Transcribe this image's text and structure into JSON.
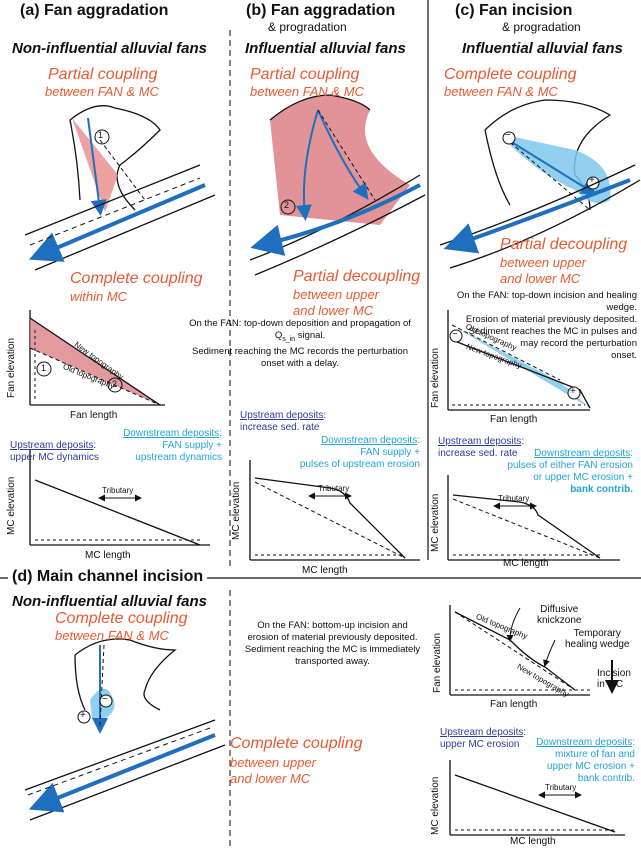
{
  "panels": {
    "a": {
      "title": "(a) Fan aggradation",
      "fan_type": "Non-influential alluvial fans",
      "coupling_top_1": "Partial coupling",
      "coupling_top_2": "between FAN & MC",
      "coupling_bottom_1": "Complete coupling",
      "coupling_bottom_2": "within MC",
      "note_1": "On the FAN: top-down deposition and propagation of Q",
      "note_sub": "s_in",
      "note_2": " signal.",
      "note_3": "Sediment reaching the MC records the perturbation",
      "note_4": "onset with a delay.",
      "profile": {
        "new_topo": "New topography",
        "old_topo": "Old topography",
        "ylabel": "Fan elevation",
        "xlabel": "Fan length",
        "marker1": "1",
        "marker2": "2"
      },
      "upstream_label": "Upstream deposits",
      "upstream_text": "upper MC dynamics",
      "downstream_label": "Downstream deposits",
      "downstream_text_1": "FAN supply +",
      "downstream_text_2": "upstream dynamics",
      "mc": {
        "ylabel": "MC elevation",
        "xlabel": "MC length",
        "tributary": "Tributary"
      }
    },
    "b": {
      "title": "(b) Fan aggradation",
      "subtitle": "& progradation",
      "fan_type": "Influential alluvial fans",
      "coupling_top_1": "Partial coupling",
      "coupling_top_2": "between FAN & MC",
      "coupling_bottom_1": "Partial decoupling",
      "coupling_bottom_2": "between upper",
      "coupling_bottom_3": "and lower MC",
      "upstream_label": "Upstream deposits",
      "upstream_text": "increase sed. rate",
      "downstream_label": "Downstream deposits",
      "downstream_text_1": "FAN supply +",
      "downstream_text_2": "pulses of upstream erosion",
      "mc": {
        "ylabel": "MC elevation",
        "xlabel": "MC length",
        "tributary": "Tributary"
      },
      "marker": "2"
    },
    "c": {
      "title": "(c) Fan incision",
      "subtitle": "& progradation",
      "fan_type": "Influential alluvial fans",
      "coupling_top_1": "Complete coupling",
      "coupling_top_2": "between FAN & MC",
      "coupling_bottom_1": "Partial decoupling",
      "coupling_bottom_2": "between upper",
      "coupling_bottom_3": "and lower MC",
      "note_1": "On the FAN: top-down incision and healing wedge.",
      "note_2": "Erosion of material previously deposited.",
      "note_3": "Sediment reaches the MC in pulses and",
      "note_4": "may record the perturbation",
      "note_5": "onset.",
      "profile": {
        "old_topo": "Old topography",
        "new_topo": "New topography",
        "ylabel": "Fan elevation",
        "xlabel": "Fan length",
        "minus": "−",
        "plus": "+"
      },
      "upstream_label": "Upstream deposits",
      "upstream_text": "increase sed. rate",
      "downstream_label": "Downstream deposits",
      "downstream_text_1": "pulses of either FAN erosion",
      "downstream_text_2": "or upper MC erosion +",
      "downstream_text_3": "bank contrib.",
      "mc": {
        "ylabel": "MC elevation",
        "xlabel": "MC length",
        "tributary": "Tributary"
      }
    },
    "d": {
      "title": "(d) Main channel incision",
      "fan_type": "Non-influential alluvial fans",
      "coupling_top_1": "Complete coupling",
      "coupling_top_2": "between FAN & MC",
      "coupling_bottom_1": "Complete coupling",
      "coupling_bottom_2": "between upper",
      "coupling_bottom_3": "and lower MC",
      "note_1": "On the FAN: bottom-up incision and",
      "note_2": "erosion of material previously deposited.",
      "note_3": "Sediment reaching the MC is immediately",
      "note_4": "transported away.",
      "profile": {
        "old_topo": "Old topography",
        "new_topo": "New topography",
        "diffusive_1": "Diffusive",
        "diffusive_2": "knickzone",
        "healing_1": "Temporary",
        "healing_2": "healing wedge",
        "incision_1": "Incision",
        "incision_2": "in MC",
        "ylabel": "Fan elevation",
        "xlabel": "Fan length"
      },
      "upstream_label": "Upstream deposits",
      "upstream_text": "upper MC erosion",
      "downstream_label": "Downstream deposits",
      "downstream_text_1": "mixture of fan and",
      "downstream_text_2": "upper MC erosion +",
      "downstream_text_3": "bank contrib.",
      "mc": {
        "ylabel": "MC elevation",
        "xlabel": "MC length",
        "tributary": "Tributary"
      }
    }
  },
  "colors": {
    "orange": "#e85a32",
    "blue": "#1f6fbf",
    "light_blue": "#7fc8ec",
    "pink": "#e88a8a",
    "dark_blue": "#2b3f9a",
    "cyan": "#22a6d6"
  }
}
